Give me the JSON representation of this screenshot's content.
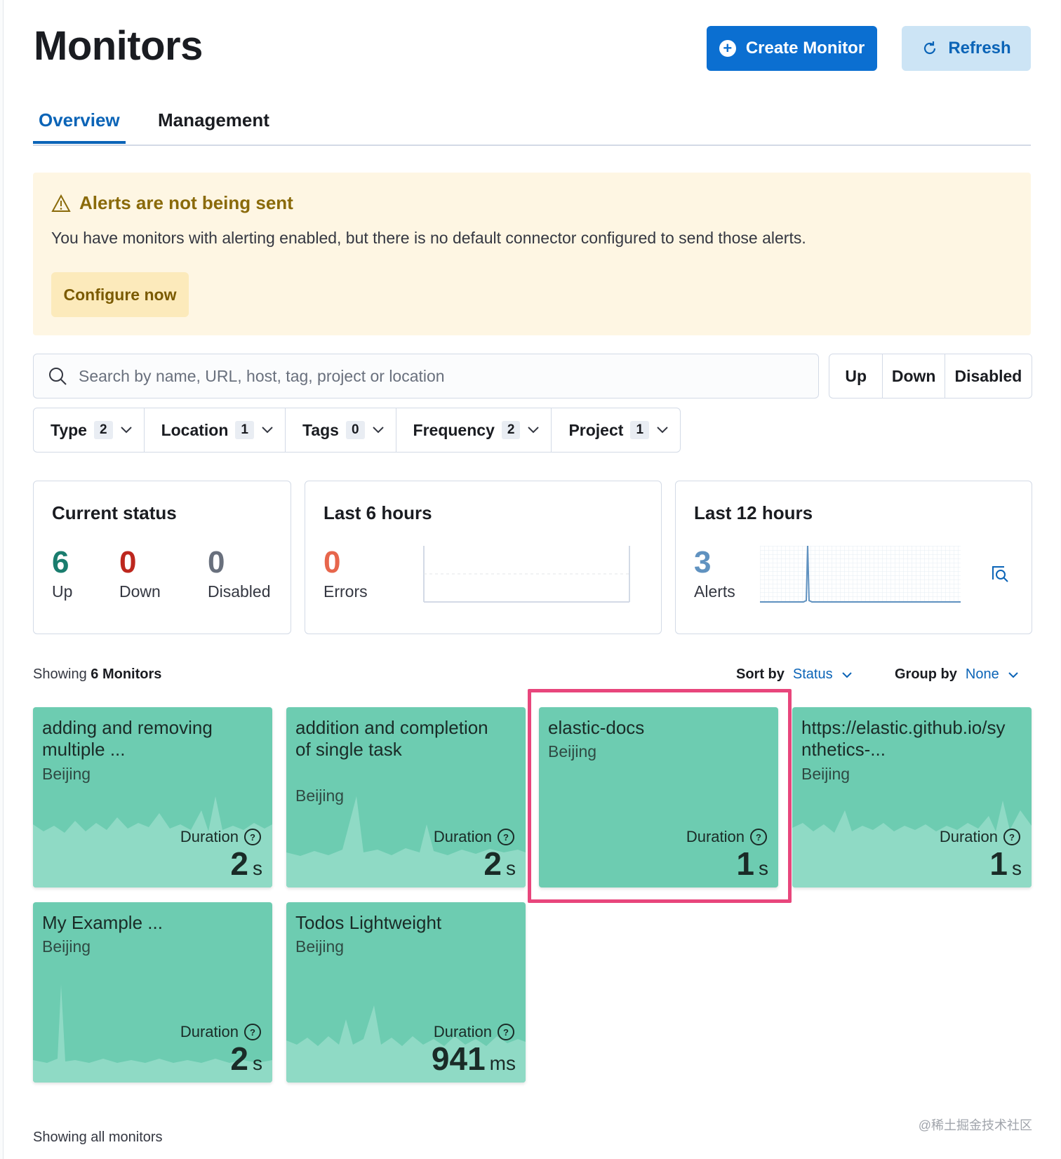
{
  "header": {
    "title": "Monitors",
    "create_label": "Create Monitor",
    "refresh_label": "Refresh"
  },
  "tabs": [
    {
      "label": "Overview",
      "active": true
    },
    {
      "label": "Management",
      "active": false
    }
  ],
  "callout": {
    "title": "Alerts are not being sent",
    "text": "You have monitors with alerting enabled, but there is no default connector configured to send those alerts.",
    "button": "Configure now"
  },
  "search": {
    "placeholder": "Search by name, URL, host, tag, project or location"
  },
  "status_filter": [
    "Up",
    "Down",
    "Disabled"
  ],
  "filters": [
    {
      "label": "Type",
      "count": "2"
    },
    {
      "label": "Location",
      "count": "1"
    },
    {
      "label": "Tags",
      "count": "0"
    },
    {
      "label": "Frequency",
      "count": "2"
    },
    {
      "label": "Project",
      "count": "1"
    }
  ],
  "current_status": {
    "title": "Current status",
    "up": {
      "value": "6",
      "label": "Up"
    },
    "down": {
      "value": "0",
      "label": "Down"
    },
    "disabled": {
      "value": "0",
      "label": "Disabled"
    }
  },
  "last6": {
    "title": "Last 6 hours",
    "value": "0",
    "label": "Errors"
  },
  "last12": {
    "title": "Last 12 hours",
    "value": "3",
    "label": "Alerts"
  },
  "list": {
    "showing_prefix": "Showing",
    "showing_count": "6 Monitors",
    "sort_label": "Sort by",
    "sort_value": "Status",
    "group_label": "Group by",
    "group_value": "None",
    "footer": "Showing all monitors"
  },
  "monitors": [
    {
      "name": "adding and removing multiple ...",
      "location": "Beijing",
      "duration_label": "Duration",
      "duration_value": "2",
      "duration_unit": "s"
    },
    {
      "name": "addition and completion of single task",
      "location": "Beijing",
      "duration_label": "Duration",
      "duration_value": "2",
      "duration_unit": "s"
    },
    {
      "name": "elastic-docs",
      "location": "Beijing",
      "duration_label": "Duration",
      "duration_value": "1",
      "duration_unit": "s"
    },
    {
      "name": "https://elastic.github.io/synthetics-...",
      "location": "Beijing",
      "duration_label": "Duration",
      "duration_value": "1",
      "duration_unit": "s"
    },
    {
      "name": "My Example ...",
      "location": "Beijing",
      "duration_label": "Duration",
      "duration_value": "2",
      "duration_unit": "s"
    },
    {
      "name": "Todos Lightweight",
      "location": "Beijing",
      "duration_label": "Duration",
      "duration_value": "941",
      "duration_unit": "ms"
    }
  ],
  "watermark": "@稀土掘金技术社区",
  "colors": {
    "primary": "#0b6fd1",
    "card_up": "#6dccb1",
    "up_green": "#1a7d6e",
    "down_red": "#bd271e",
    "errors_orange": "#e7664c",
    "alerts_blue": "#6092c0",
    "highlight": "#e8467c"
  }
}
